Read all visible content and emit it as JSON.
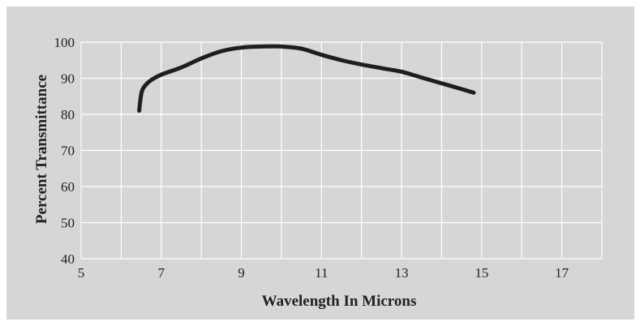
{
  "chart_data": {
    "type": "line",
    "title": "",
    "xlabel": "Wavelength In Microns",
    "ylabel": "Percent Transmittance",
    "xlim": [
      5,
      18
    ],
    "ylim": [
      40,
      100
    ],
    "x_ticks": [
      5,
      7,
      9,
      11,
      13,
      15,
      17
    ],
    "y_ticks": [
      40,
      50,
      60,
      70,
      80,
      90,
      100
    ],
    "grid": true,
    "line_color": "#1e1e1e",
    "background_color": "#d6d6d7",
    "grid_color": "#ffffff",
    "series": [
      {
        "x": [
          6.45,
          6.48,
          6.52,
          6.6,
          6.75,
          7.0,
          7.5,
          8.0,
          8.5,
          9.0,
          9.5,
          10.0,
          10.5,
          11.0,
          11.5,
          12.0,
          12.5,
          13.0,
          13.5,
          14.0,
          14.5,
          14.8
        ],
        "y": [
          81,
          84,
          86.5,
          88,
          89.5,
          91,
          93,
          95.5,
          97.5,
          98.5,
          98.8,
          98.8,
          98.2,
          96.5,
          95,
          93.8,
          92.8,
          91.8,
          90.2,
          88.6,
          87,
          86
        ]
      }
    ]
  }
}
